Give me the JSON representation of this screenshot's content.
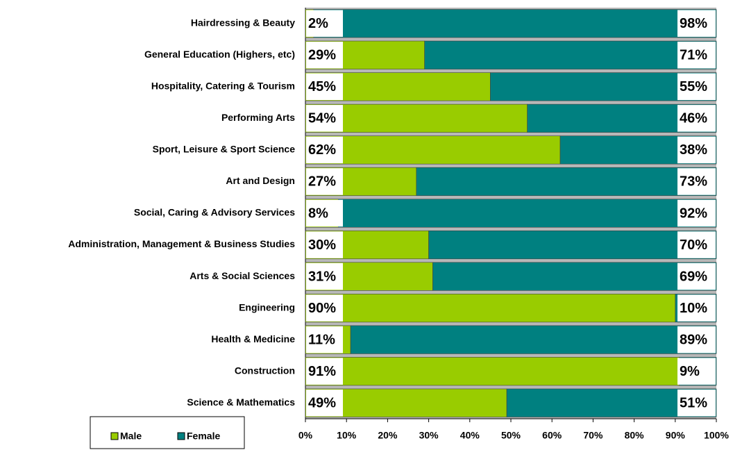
{
  "chart_data": {
    "type": "stacked_bar_horizontal",
    "categories": [
      "Hairdressing & Beauty",
      "General Education (Highers, etc)",
      "Hospitality, Catering & Tourism",
      "Performing Arts",
      "Sport, Leisure & Sport Science",
      "Art and Design",
      "Social, Caring & Advisory Services",
      "Administration, Management  & Business Studies",
      "Arts & Social Sciences",
      "Engineering",
      "Health & Medicine",
      "Construction",
      "Science & Mathematics"
    ],
    "series": [
      {
        "name": "Male",
        "color": "#99cc00",
        "values": [
          2,
          29,
          45,
          54,
          62,
          27,
          8,
          30,
          31,
          90,
          11,
          91,
          49
        ],
        "value_labels": [
          "2%",
          "29%",
          "45%",
          "54%",
          "62%",
          "27%",
          "8%",
          "30%",
          "31%",
          "90%",
          "11%",
          "91%",
          "49%"
        ]
      },
      {
        "name": "Female",
        "color": "#008080",
        "values": [
          98,
          71,
          55,
          46,
          38,
          73,
          92,
          70,
          69,
          10,
          89,
          9,
          51
        ],
        "value_labels": [
          "98%",
          "71%",
          "55%",
          "46%",
          "38%",
          "73%",
          "92%",
          "70%",
          "69%",
          "10%",
          "89%",
          "9%",
          "51%"
        ]
      }
    ],
    "xlim": [
      0,
      100
    ],
    "xticks": [
      {
        "value": 0,
        "label": "0%"
      },
      {
        "value": 10,
        "label": "10%"
      },
      {
        "value": 20,
        "label": "20%"
      },
      {
        "value": 30,
        "label": "30%"
      },
      {
        "value": 40,
        "label": "40%"
      },
      {
        "value": 50,
        "label": "50%"
      },
      {
        "value": 60,
        "label": "60%"
      },
      {
        "value": 70,
        "label": "70%"
      },
      {
        "value": 80,
        "label": "80%"
      },
      {
        "value": 90,
        "label": "90%"
      },
      {
        "value": 100,
        "label": "100%"
      }
    ],
    "legend": "bottom-left"
  }
}
